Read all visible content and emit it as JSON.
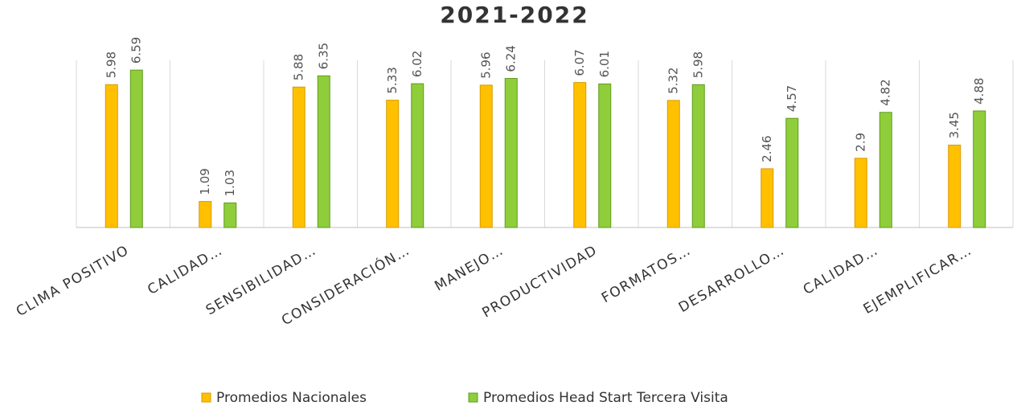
{
  "chart_data": {
    "type": "bar",
    "title": "2021-2022",
    "categories": [
      "CLIMA POSITIVO",
      "CALIDAD…",
      "SENSIBILIDAD…",
      "CONSIDERACIÓN…",
      "MANEJO…",
      "PRODUCTIVIDAD",
      "FORMATOS…",
      "DESARROLLO…",
      "CALIDAD…",
      "EJEMPLIFICAR…"
    ],
    "series": [
      {
        "name": "Promedios Nacionales",
        "color": "#ffc000",
        "values": [
          5.98,
          1.09,
          5.88,
          5.33,
          5.96,
          6.07,
          5.32,
          2.46,
          2.9,
          3.45
        ]
      },
      {
        "name": "Promedios Head Start Tercera Visita",
        "color": "#8fce3a",
        "values": [
          6.59,
          1.03,
          6.35,
          6.02,
          6.24,
          6.01,
          5.98,
          4.57,
          4.82,
          4.88
        ]
      }
    ],
    "ylim": [
      0,
      7
    ],
    "legend": "bottom"
  }
}
